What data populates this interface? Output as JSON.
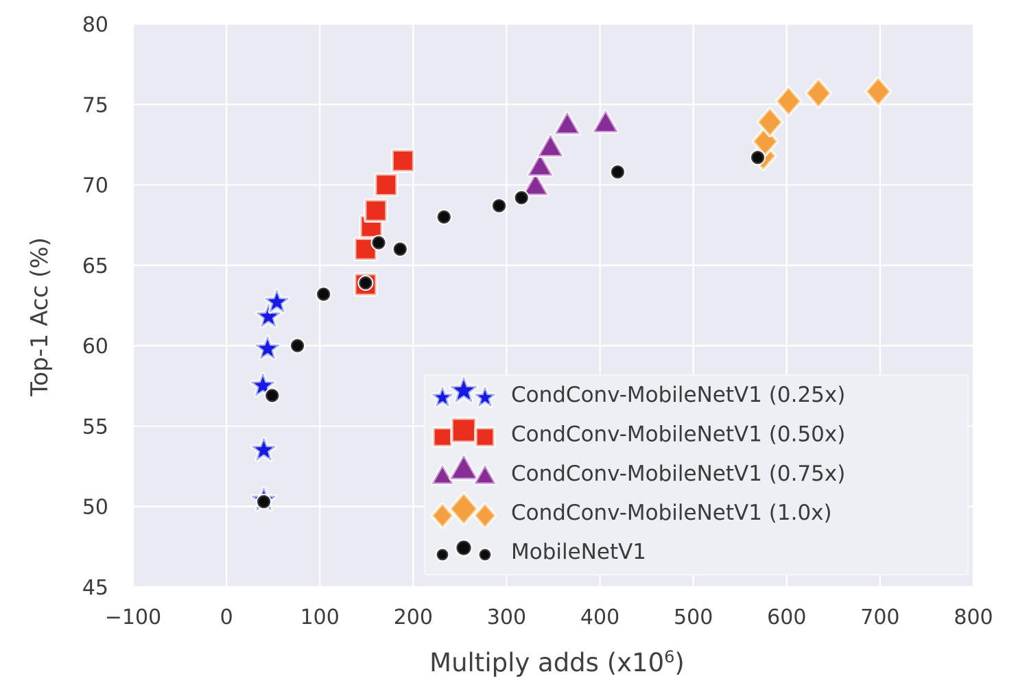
{
  "figure": {
    "ylabel": "Top-1 Acc (%)",
    "xlabel_prefix": "Multiply adds (x10",
    "xlabel_sup": "6",
    "xlabel_suffix": ")"
  },
  "chart_data": {
    "type": "scatter",
    "title": "",
    "xlabel": "Multiply adds (x10^6)",
    "ylabel": "Top-1 Acc (%)",
    "xlim": [
      -100,
      800
    ],
    "ylim": [
      45,
      80
    ],
    "xtick_values": [
      -100,
      0,
      100,
      200,
      300,
      400,
      500,
      600,
      700,
      800
    ],
    "xtick_labels": [
      "−100",
      "0",
      "100",
      "200",
      "300",
      "400",
      "500",
      "600",
      "700",
      "800"
    ],
    "ytick_values": [
      45,
      50,
      55,
      60,
      65,
      70,
      75,
      80
    ],
    "ytick_labels": [
      "45",
      "50",
      "55",
      "60",
      "65",
      "70",
      "75",
      "80"
    ],
    "grid": true,
    "plot_background": "#eaeaf2",
    "grid_color": "#ffffff",
    "tick_label_color": "#3c3c3c",
    "legend_position": "lower-right-inside",
    "legend_fill": "#edeff5",
    "legend_border": "#f6f6f9",
    "legend_text_color": "#3a3a3a",
    "series": [
      {
        "name": "CondConv-MobileNetV1 (0.25x)",
        "marker": "star",
        "color": "#1919e1",
        "edge": "#aeb8f2",
        "points": [
          [
            40,
            50.4
          ],
          [
            40,
            53.5
          ],
          [
            39,
            57.5
          ],
          [
            44,
            59.8
          ],
          [
            45,
            61.8
          ],
          [
            54,
            62.7
          ]
        ]
      },
      {
        "name": "CondConv-MobileNetV1 (0.50x)",
        "marker": "square",
        "color": "#e8301d",
        "edge": "#f2b7ae",
        "points": [
          [
            149,
            63.8
          ],
          [
            149,
            66.0
          ],
          [
            155,
            67.4
          ],
          [
            160,
            68.4
          ],
          [
            171,
            70.0
          ],
          [
            189,
            71.5
          ]
        ]
      },
      {
        "name": "CondConv-MobileNetV1 (0.75x)",
        "marker": "triangle",
        "color": "#872d96",
        "edge": "#cf9fd9",
        "points": [
          [
            331,
            69.9
          ],
          [
            336,
            71.1
          ],
          [
            347,
            72.3
          ],
          [
            365,
            73.7
          ],
          [
            406,
            73.8
          ]
        ]
      },
      {
        "name": "CondConv-MobileNetV1 (1.0x)",
        "marker": "diamond",
        "color": "#f5a040",
        "edge": "#f9d6a4",
        "points": [
          [
            575,
            71.8
          ],
          [
            577,
            72.7
          ],
          [
            582,
            73.9
          ],
          [
            602,
            75.2
          ],
          [
            634,
            75.7
          ],
          [
            698,
            75.8
          ]
        ]
      },
      {
        "name": "MobileNetV1",
        "marker": "circle",
        "color": "#0b0b0b",
        "edge": "#3a3a3a",
        "points": [
          [
            40,
            50.3
          ],
          [
            49,
            56.9
          ],
          [
            76,
            60.0
          ],
          [
            104,
            63.2
          ],
          [
            149,
            63.9
          ],
          [
            163,
            66.4
          ],
          [
            186,
            66.0
          ],
          [
            233,
            68.0
          ],
          [
            292,
            68.7
          ],
          [
            316,
            69.2
          ],
          [
            419,
            70.8
          ],
          [
            569,
            71.7
          ]
        ]
      }
    ]
  }
}
